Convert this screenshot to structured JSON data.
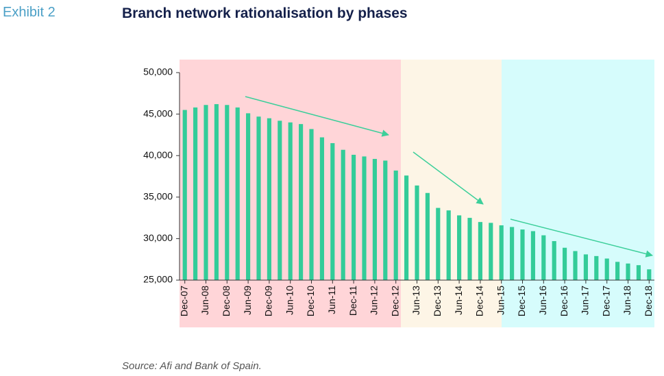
{
  "exhibit": "Exhibit 2",
  "source": "Source: Afi and Bank of Spain.",
  "chart_data": {
    "type": "bar",
    "title": "Branch network rationalisation by phases",
    "categories": [
      "Dec-07",
      null,
      "Jun-08",
      null,
      "Dec-08",
      null,
      "Jun-09",
      null,
      "Dec-09",
      null,
      "Jun-10",
      null,
      "Dec-10",
      null,
      "Jun-11",
      null,
      "Dec-11",
      null,
      "Jun-12",
      null,
      "Dec-12",
      null,
      "Jun-13",
      null,
      "Dec-13",
      null,
      "Jun-14",
      null,
      "Dec-14",
      null,
      "Jun-15",
      null,
      "Dec-15",
      null,
      "Jun-16",
      null,
      "Dec-16",
      null,
      "Jun-17",
      null,
      "Dec-17",
      null,
      "Jun-18",
      null,
      "Dec-18"
    ],
    "values": [
      45500,
      45800,
      46100,
      46200,
      46100,
      45800,
      45100,
      44700,
      44500,
      44200,
      44000,
      43800,
      43200,
      42200,
      41500,
      40700,
      40100,
      39900,
      39600,
      39400,
      38200,
      37600,
      36400,
      35500,
      33700,
      33400,
      32800,
      32500,
      32000,
      31900,
      31600,
      31400,
      31100,
      30900,
      30400,
      29700,
      28900,
      28500,
      28100,
      27900,
      27600,
      27200,
      27000,
      26800,
      26300
    ],
    "color": "#33cc99",
    "ylim": [
      25000,
      50000
    ],
    "yticks": [
      {
        "value": 25000,
        "label": "25,000"
      },
      {
        "value": 30000,
        "label": "30,000"
      },
      {
        "value": 35000,
        "label": "35,000"
      },
      {
        "value": 40000,
        "label": "40,000"
      },
      {
        "value": 45000,
        "label": "45,000"
      },
      {
        "value": 50000,
        "label": "50,000"
      }
    ],
    "grid": false
  }
}
